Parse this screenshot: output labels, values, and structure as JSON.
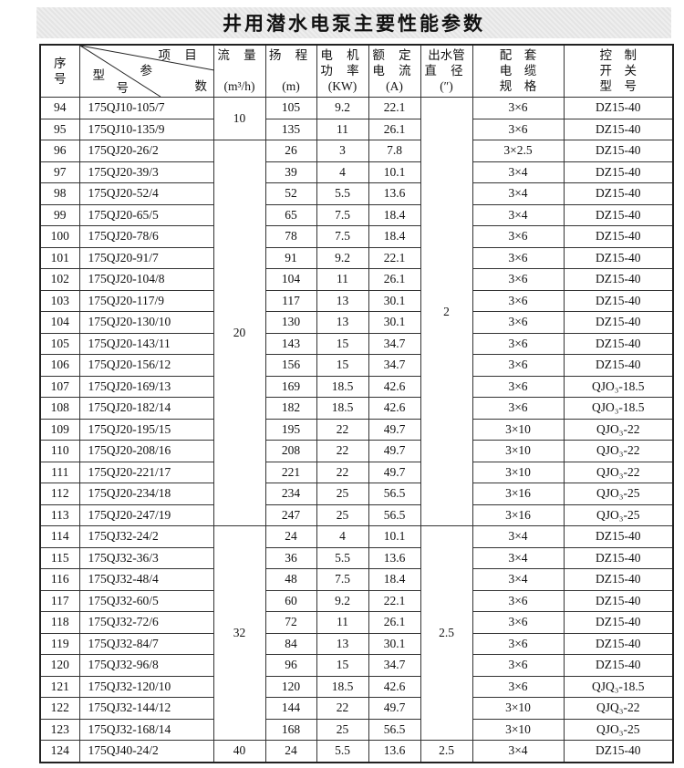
{
  "title": "井用潜水电泵主要性能参数",
  "header": {
    "seq": [
      "序",
      "号"
    ],
    "diag": {
      "item": "项 目",
      "param": "参",
      "num": "数",
      "model1": "型",
      "model2": "号"
    },
    "flow": [
      "流 量",
      "(m³/h)"
    ],
    "head": [
      "扬 程",
      "(m)"
    ],
    "power": [
      "电 机",
      "功 率",
      "(KW)"
    ],
    "current": [
      "额 定",
      "电 流",
      "(A)"
    ],
    "pipe": [
      "出水管",
      "直 径",
      "(″)"
    ],
    "cable": [
      "配　套",
      "电　缆",
      "规　格"
    ],
    "switch": [
      "控　制",
      "开　关",
      "型　号"
    ]
  },
  "flow_groups": [
    {
      "value": "10",
      "rows": 2
    },
    {
      "value": "20",
      "rows": 18
    },
    {
      "value": "32",
      "rows": 10
    },
    {
      "value": "40",
      "rows": 1
    }
  ],
  "pipe_groups": [
    {
      "value": "2",
      "rows": 20
    },
    {
      "value": "2.5",
      "rows": 10
    },
    {
      "value": "2.5",
      "rows": 1
    }
  ],
  "rows": [
    [
      "94",
      "175QJ10-105/7",
      "105",
      "9.2",
      "22.1",
      "3×6",
      "DZ15-40"
    ],
    [
      "95",
      "175QJ10-135/9",
      "135",
      "11",
      "26.1",
      "3×6",
      "DZ15-40"
    ],
    [
      "96",
      "175QJ20-26/2",
      "26",
      "3",
      "7.8",
      "3×2.5",
      "DZ15-40"
    ],
    [
      "97",
      "175QJ20-39/3",
      "39",
      "4",
      "10.1",
      "3×4",
      "DZ15-40"
    ],
    [
      "98",
      "175QJ20-52/4",
      "52",
      "5.5",
      "13.6",
      "3×4",
      "DZ15-40"
    ],
    [
      "99",
      "175QJ20-65/5",
      "65",
      "7.5",
      "18.4",
      "3×4",
      "DZ15-40"
    ],
    [
      "100",
      "175QJ20-78/6",
      "78",
      "7.5",
      "18.4",
      "3×6",
      "DZ15-40"
    ],
    [
      "101",
      "175QJ20-91/7",
      "91",
      "9.2",
      "22.1",
      "3×6",
      "DZ15-40"
    ],
    [
      "102",
      "175QJ20-104/8",
      "104",
      "11",
      "26.1",
      "3×6",
      "DZ15-40"
    ],
    [
      "103",
      "175QJ20-117/9",
      "117",
      "13",
      "30.1",
      "3×6",
      "DZ15-40"
    ],
    [
      "104",
      "175QJ20-130/10",
      "130",
      "13",
      "30.1",
      "3×6",
      "DZ15-40"
    ],
    [
      "105",
      "175QJ20-143/11",
      "143",
      "15",
      "34.7",
      "3×6",
      "DZ15-40"
    ],
    [
      "106",
      "175QJ20-156/12",
      "156",
      "15",
      "34.7",
      "3×6",
      "DZ15-40"
    ],
    [
      "107",
      "175QJ20-169/13",
      "169",
      "18.5",
      "42.6",
      "3×6",
      "QJO₃-18.5"
    ],
    [
      "108",
      "175QJ20-182/14",
      "182",
      "18.5",
      "42.6",
      "3×6",
      "QJO₃-18.5"
    ],
    [
      "109",
      "175QJ20-195/15",
      "195",
      "22",
      "49.7",
      "3×10",
      "QJO₃-22"
    ],
    [
      "110",
      "175QJ20-208/16",
      "208",
      "22",
      "49.7",
      "3×10",
      "QJO₃-22"
    ],
    [
      "111",
      "175QJ20-221/17",
      "221",
      "22",
      "49.7",
      "3×10",
      "QJO₃-22"
    ],
    [
      "112",
      "175QJ20-234/18",
      "234",
      "25",
      "56.5",
      "3×16",
      "QJO₃-25"
    ],
    [
      "113",
      "175QJ20-247/19",
      "247",
      "25",
      "56.5",
      "3×16",
      "QJO₃-25"
    ],
    [
      "114",
      "175QJ32-24/2",
      "24",
      "4",
      "10.1",
      "3×4",
      "DZ15-40"
    ],
    [
      "115",
      "175QJ32-36/3",
      "36",
      "5.5",
      "13.6",
      "3×4",
      "DZ15-40"
    ],
    [
      "116",
      "175QJ32-48/4",
      "48",
      "7.5",
      "18.4",
      "3×4",
      "DZ15-40"
    ],
    [
      "117",
      "175QJ32-60/5",
      "60",
      "9.2",
      "22.1",
      "3×6",
      "DZ15-40"
    ],
    [
      "118",
      "175QJ32-72/6",
      "72",
      "11",
      "26.1",
      "3×6",
      "DZ15-40"
    ],
    [
      "119",
      "175QJ32-84/7",
      "84",
      "13",
      "30.1",
      "3×6",
      "DZ15-40"
    ],
    [
      "120",
      "175QJ32-96/8",
      "96",
      "15",
      "34.7",
      "3×6",
      "DZ15-40"
    ],
    [
      "121",
      "175QJ32-120/10",
      "120",
      "18.5",
      "42.6",
      "3×6",
      "QJQ₃-18.5"
    ],
    [
      "122",
      "175QJ32-144/12",
      "144",
      "22",
      "49.7",
      "3×10",
      "QJQ₃-22"
    ],
    [
      "123",
      "175QJ32-168/14",
      "168",
      "25",
      "56.5",
      "3×10",
      "QJO₃-25"
    ],
    [
      "124",
      "175QJ40-24/2",
      "24",
      "5.5",
      "13.6",
      "3×4",
      "DZ15-40"
    ]
  ]
}
